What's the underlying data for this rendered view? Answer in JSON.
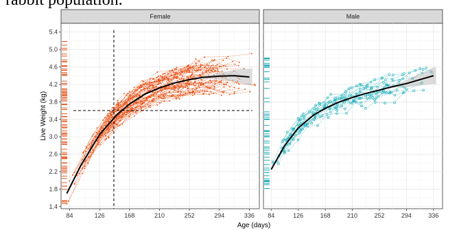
{
  "caption_fragment": "rabbit population.",
  "chart_data": {
    "type": "scatter",
    "xlabel": "Age (days)",
    "ylabel": "Live Weight (kg)",
    "xlim": [
      72,
      350
    ],
    "ylim": [
      1.35,
      5.6
    ],
    "x_ticks": [
      84,
      126,
      168,
      210,
      252,
      294,
      336
    ],
    "y_ticks": [
      1.4,
      1.8,
      2.2,
      2.6,
      3.0,
      3.4,
      3.8,
      4.2,
      4.6,
      5.0,
      5.4
    ],
    "grid": true,
    "legend": "none",
    "panels": [
      {
        "strip": "Female",
        "color": "#e8561b",
        "n_individuals": 60,
        "points": "dotted lines with small points",
        "fit": {
          "x": [
            80,
            100,
            126,
            150,
            168,
            190,
            210,
            230,
            252,
            270,
            294,
            315,
            336
          ],
          "y": [
            1.7,
            2.35,
            3.05,
            3.5,
            3.75,
            3.98,
            4.12,
            4.23,
            4.31,
            4.36,
            4.39,
            4.4,
            4.37
          ]
        },
        "band_extent": [
          270,
          340
        ],
        "reference_lines": {
          "vertical_x": 146,
          "horizontal_y": 3.6
        },
        "rug_y_range": [
          1.45,
          5.2
        ]
      },
      {
        "strip": "Male",
        "color": "#1aadb8",
        "n_individuals": 18,
        "points": "dotted lines with open circles",
        "fit": {
          "x": [
            84,
            105,
            126,
            150,
            168,
            190,
            210,
            230,
            252,
            270,
            294,
            315,
            336
          ],
          "y": [
            2.25,
            2.8,
            3.2,
            3.5,
            3.65,
            3.8,
            3.9,
            3.99,
            4.07,
            4.14,
            4.22,
            4.31,
            4.4
          ]
        },
        "band_extent": [
          270,
          340
        ],
        "rug_y_range": [
          1.72,
          4.92
        ]
      }
    ]
  }
}
